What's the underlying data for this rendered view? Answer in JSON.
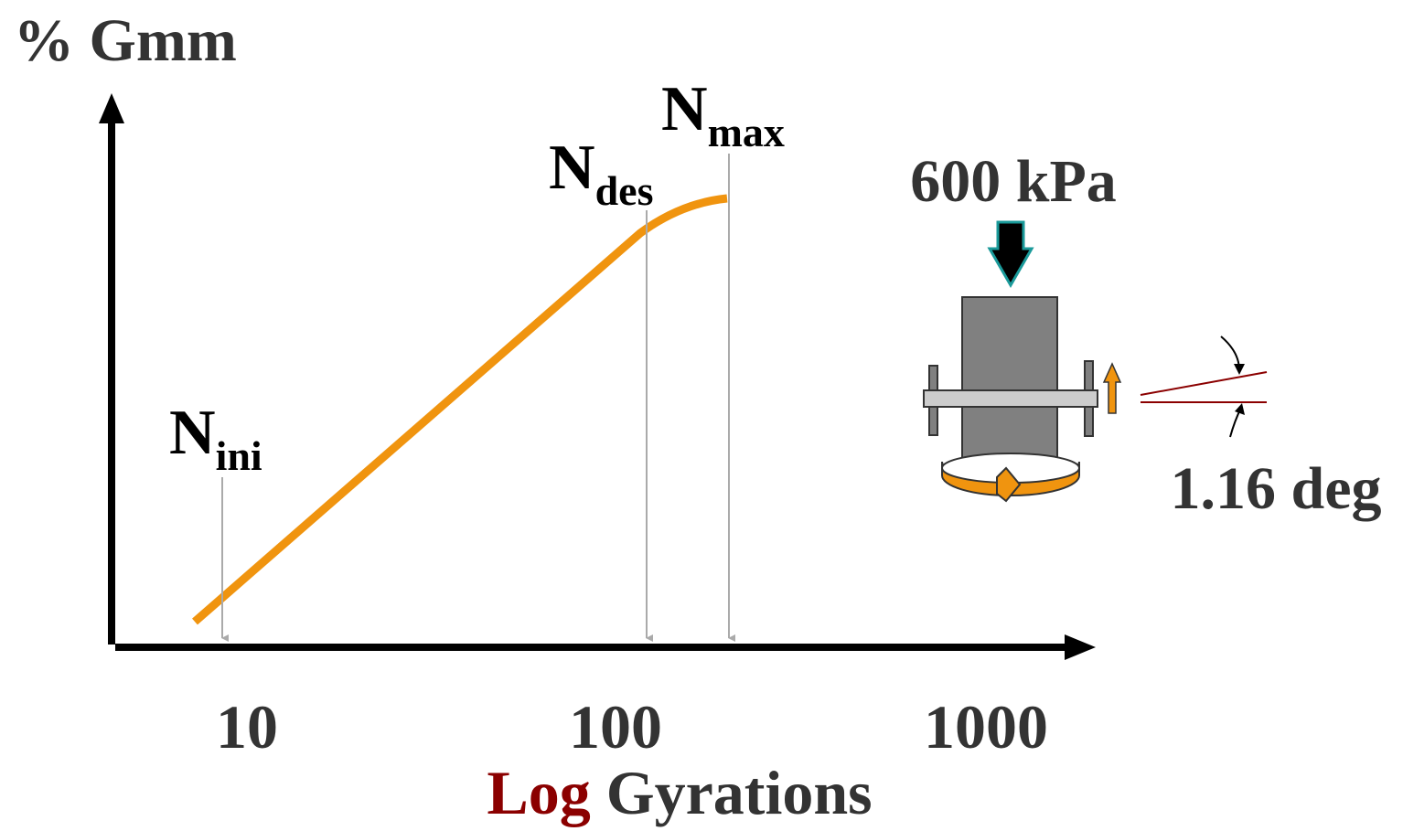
{
  "y_axis": {
    "label": "% Gmm"
  },
  "x_axis": {
    "ticks": [
      "10",
      "100",
      "1000"
    ],
    "label_prefix": "Log",
    "label": "Gyrations"
  },
  "markers": [
    {
      "symbol": "N",
      "subscript": "ini"
    },
    {
      "symbol": "N",
      "subscript": "des"
    },
    {
      "symbol": "N",
      "subscript": "max"
    }
  ],
  "apparatus": {
    "pressure": "600 kPa",
    "angle": "1.16 deg"
  }
}
